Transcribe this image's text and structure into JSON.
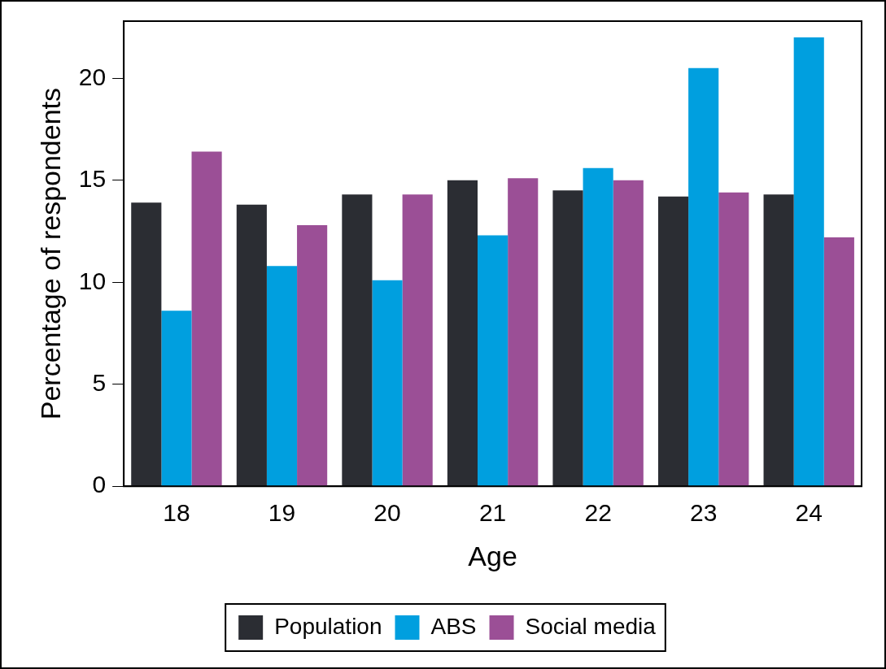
{
  "chart_data": {
    "type": "bar",
    "xlabel": "Age",
    "ylabel": "Percentage of respondents",
    "categories": [
      "18",
      "19",
      "20",
      "21",
      "22",
      "23",
      "24"
    ],
    "series": [
      {
        "name": "Population",
        "color": "#2b2d33",
        "values": [
          13.9,
          13.8,
          14.3,
          15.0,
          14.5,
          14.2,
          14.3
        ]
      },
      {
        "name": "ABS",
        "color": "#009fdf",
        "values": [
          8.6,
          10.8,
          10.1,
          12.3,
          15.6,
          20.5,
          22.0
        ]
      },
      {
        "name": "Social media",
        "color": "#9b4f96",
        "values": [
          16.4,
          12.8,
          14.3,
          15.1,
          15.0,
          14.4,
          12.2
        ]
      }
    ],
    "ylim": [
      0,
      22.8
    ],
    "yticks": [
      0,
      5,
      10,
      15,
      20
    ],
    "grid": false,
    "legend": "bottom"
  }
}
